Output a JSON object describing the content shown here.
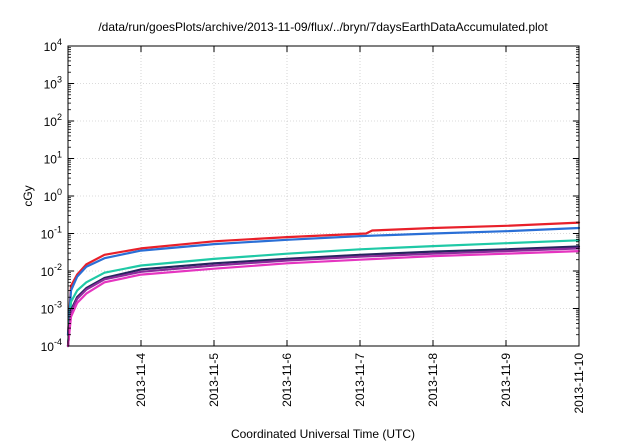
{
  "chart_data": {
    "type": "line",
    "title": "/data/run/goesPlots/archive/2013-11-09/flux/../bryn/7daysEarthDataAccumulated.plot",
    "xlabel": "Coordinated Universal Time (UTC)",
    "ylabel": "cGy",
    "y_scale": "log",
    "ylim": [
      0.0001,
      10000
    ],
    "xlim": [
      "2013-11-03",
      "2013-11-10"
    ],
    "grid": true,
    "x_tick_labels": [
      "2013-11-4",
      "2013-11-5",
      "2013-11-6",
      "2013-11-7",
      "2013-11-8",
      "2013-11-9",
      "2013-11-10"
    ],
    "y_tick_labels": [
      {
        "base": "10",
        "exp": "-4"
      },
      {
        "base": "10",
        "exp": "-3"
      },
      {
        "base": "10",
        "exp": "-2"
      },
      {
        "base": "10",
        "exp": "-1"
      },
      {
        "base": "10",
        "exp": "0"
      },
      {
        "base": "10",
        "exp": "1"
      },
      {
        "base": "10",
        "exp": "2"
      },
      {
        "base": "10",
        "exp": "3"
      },
      {
        "base": "10",
        "exp": "4"
      }
    ],
    "series": [
      {
        "color": "#e8202a",
        "x": [
          "2013-11-03",
          "2013-11-03 01:00",
          "2013-11-03 03:00",
          "2013-11-03 06:00",
          "2013-11-03 12:00",
          "2013-11-04",
          "2013-11-05",
          "2013-11-06",
          "2013-11-07 02:00",
          "2013-11-07 04:00",
          "2013-11-08",
          "2013-11-09",
          "2013-11-10"
        ],
        "values": [
          0.0002,
          0.004,
          0.008,
          0.015,
          0.027,
          0.04,
          0.062,
          0.08,
          0.1,
          0.12,
          0.14,
          0.16,
          0.195
        ]
      },
      {
        "color": "#2a6fd6",
        "x": [
          "2013-11-03",
          "2013-11-03 01:00",
          "2013-11-03 03:00",
          "2013-11-03 06:00",
          "2013-11-03 12:00",
          "2013-11-04",
          "2013-11-05",
          "2013-11-06",
          "2013-11-07",
          "2013-11-08",
          "2013-11-09",
          "2013-11-10"
        ],
        "values": [
          0.0002,
          0.003,
          0.007,
          0.013,
          0.022,
          0.035,
          0.052,
          0.068,
          0.085,
          0.1,
          0.115,
          0.14
        ]
      },
      {
        "color": "#1fc9a6",
        "x": [
          "2013-11-03",
          "2013-11-03 01:00",
          "2013-11-03 03:00",
          "2013-11-03 06:00",
          "2013-11-03 12:00",
          "2013-11-04",
          "2013-11-05",
          "2013-11-06",
          "2013-11-07",
          "2013-11-08",
          "2013-11-09",
          "2013-11-10"
        ],
        "values": [
          0.0001,
          0.0015,
          0.003,
          0.005,
          0.009,
          0.014,
          0.021,
          0.029,
          0.038,
          0.046,
          0.055,
          0.066
        ]
      },
      {
        "color": "#25255e",
        "x": [
          "2013-11-03",
          "2013-11-03 01:00",
          "2013-11-03 03:00",
          "2013-11-03 06:00",
          "2013-11-03 12:00",
          "2013-11-04",
          "2013-11-05",
          "2013-11-06",
          "2013-11-07",
          "2013-11-08",
          "2013-11-09",
          "2013-11-10"
        ],
        "values": [
          0.0001,
          0.0009,
          0.002,
          0.0035,
          0.0065,
          0.011,
          0.016,
          0.021,
          0.027,
          0.033,
          0.038,
          0.045
        ]
      },
      {
        "color": "#8a2b9a",
        "x": [
          "2013-11-03",
          "2013-11-03 01:00",
          "2013-11-03 03:00",
          "2013-11-03 06:00",
          "2013-11-03 12:00",
          "2013-11-04",
          "2013-11-05",
          "2013-11-06",
          "2013-11-07",
          "2013-11-08",
          "2013-11-09",
          "2013-11-10"
        ],
        "values": [
          0.0001,
          0.0008,
          0.0018,
          0.0032,
          0.006,
          0.0095,
          0.014,
          0.019,
          0.024,
          0.029,
          0.034,
          0.04
        ]
      },
      {
        "color": "#e535c0",
        "x": [
          "2013-11-03",
          "2013-11-03 01:00",
          "2013-11-03 03:00",
          "2013-11-03 06:00",
          "2013-11-03 12:00",
          "2013-11-04",
          "2013-11-05",
          "2013-11-06",
          "2013-11-07",
          "2013-11-08",
          "2013-11-09",
          "2013-11-10"
        ],
        "values": [
          0.0001,
          0.0006,
          0.0014,
          0.0025,
          0.005,
          0.008,
          0.0115,
          0.016,
          0.02,
          0.025,
          0.029,
          0.034
        ]
      }
    ]
  }
}
